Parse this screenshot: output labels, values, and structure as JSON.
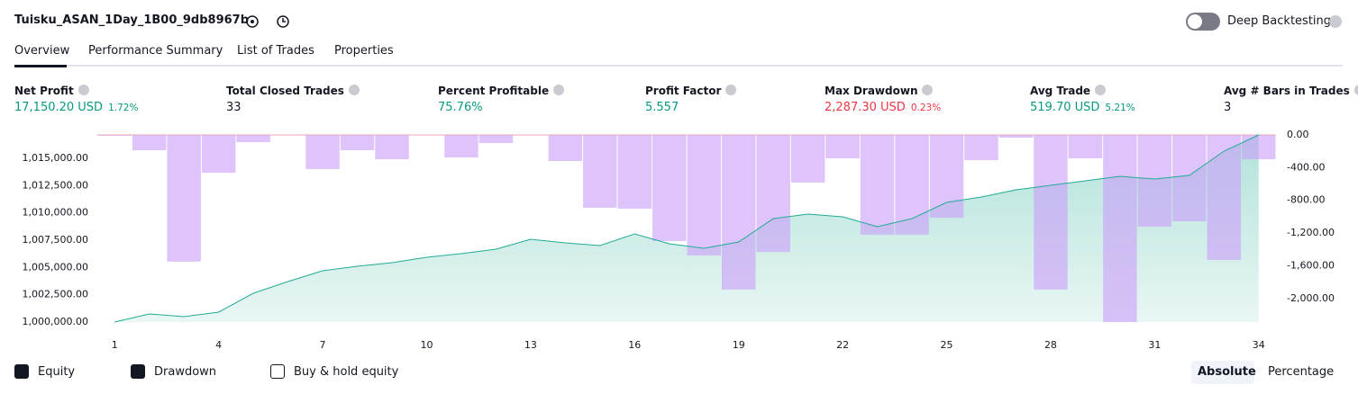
{
  "header": {
    "title": "Tuisku_ASAN_1Day_1B00_9db8967b",
    "toggle": "Deep Backtesting"
  },
  "tabs": [
    "Overview",
    "Performance Summary",
    "List of Trades",
    "Properties"
  ],
  "metrics": [
    {
      "label": "Net Profit",
      "value": "17,150.20 USD",
      "extra": "1.72%",
      "color": "#089981",
      "extra_color": "#089981"
    },
    {
      "label": "Total Closed Trades",
      "value": "33",
      "color": "#131722"
    },
    {
      "label": "Percent Profitable",
      "value": "75.76%",
      "color": "#089981"
    },
    {
      "label": "Profit Factor",
      "value": "5.557",
      "color": "#089981"
    },
    {
      "label": "Max Drawdown",
      "value": "2,287.30 USD",
      "extra": "0.23%",
      "color": "#f23645",
      "extra_color": "#f23645"
    },
    {
      "label": "Avg Trade",
      "value": "519.70 USD",
      "extra": "5.21%",
      "color": "#089981",
      "extra_color": "#089981"
    },
    {
      "label": "Avg # Bars in Trades",
      "value": "3",
      "color": "#131722"
    }
  ],
  "chart_data": {
    "type": "line",
    "x": [
      1,
      2,
      3,
      4,
      5,
      6,
      7,
      8,
      9,
      10,
      11,
      12,
      13,
      14,
      15,
      16,
      17,
      18,
      19,
      20,
      21,
      22,
      23,
      24,
      25,
      26,
      27,
      28,
      29,
      30,
      31,
      32,
      33,
      34
    ],
    "xlim": [
      0.5,
      34.5
    ],
    "xticks": [
      1,
      4,
      7,
      10,
      13,
      16,
      19,
      22,
      25,
      28,
      31,
      34
    ],
    "ylim": [
      1000000,
      1017150
    ],
    "yticks": [
      {
        "value": 1000000,
        "label": "1,000,000.00"
      },
      {
        "value": 1002500,
        "label": "1,002,500.00"
      },
      {
        "value": 1005000,
        "label": "1,005,000.00"
      },
      {
        "value": 1007500,
        "label": "1,007,500.00"
      },
      {
        "value": 1010000,
        "label": "1,010,000.00"
      },
      {
        "value": 1012500,
        "label": "1,012,500.00"
      },
      {
        "value": 1015000,
        "label": "1,015,000.00"
      }
    ],
    "y2lim": [
      -2287.3,
      0
    ],
    "y2ticks": [
      {
        "value": 0,
        "label": "0.00"
      },
      {
        "value": -400,
        "label": "-400.00"
      },
      {
        "value": -800,
        "label": "-800.00"
      },
      {
        "value": -1200,
        "label": "-1,200.00"
      },
      {
        "value": -1600,
        "label": "-1,600.00"
      },
      {
        "value": -2000,
        "label": "-2,000.00"
      }
    ],
    "series": [
      {
        "name": "Equity",
        "color": "#22ab94",
        "checked": true,
        "values": [
          1000000,
          1000742,
          1000495,
          1000907,
          1002639,
          1003710,
          1004700,
          1005112,
          1005442,
          1005937,
          1006267,
          1006679,
          1007586,
          1007256,
          1007009,
          1008080,
          1007173,
          1006761,
          1007338,
          1009482,
          1009894,
          1009647,
          1008740,
          1009482,
          1010966,
          1011461,
          1012121,
          1012533,
          1012945,
          1013358,
          1013110,
          1013440,
          1015666,
          1017150
        ]
      },
      {
        "name": "Drawdown",
        "color": "#c99cfa",
        "checked": true,
        "axis": "y2",
        "type": "bar",
        "values": [
          -10,
          -187,
          -1549,
          -462,
          -88,
          0,
          -418,
          -187,
          -297,
          0,
          -275,
          -99,
          0,
          -319,
          -890,
          -901,
          -1297,
          -1473,
          -1890,
          -1429,
          -582,
          -286,
          -1220,
          -1220,
          -1011,
          -308,
          -33,
          -1890,
          -286,
          -2287.3,
          -1121,
          -1055,
          -1528,
          -297
        ]
      }
    ],
    "hidden_series": [
      {
        "name": "Buy & hold equity",
        "checked": false
      }
    ]
  },
  "view_buttons": [
    "Absolute",
    "Percentage"
  ]
}
